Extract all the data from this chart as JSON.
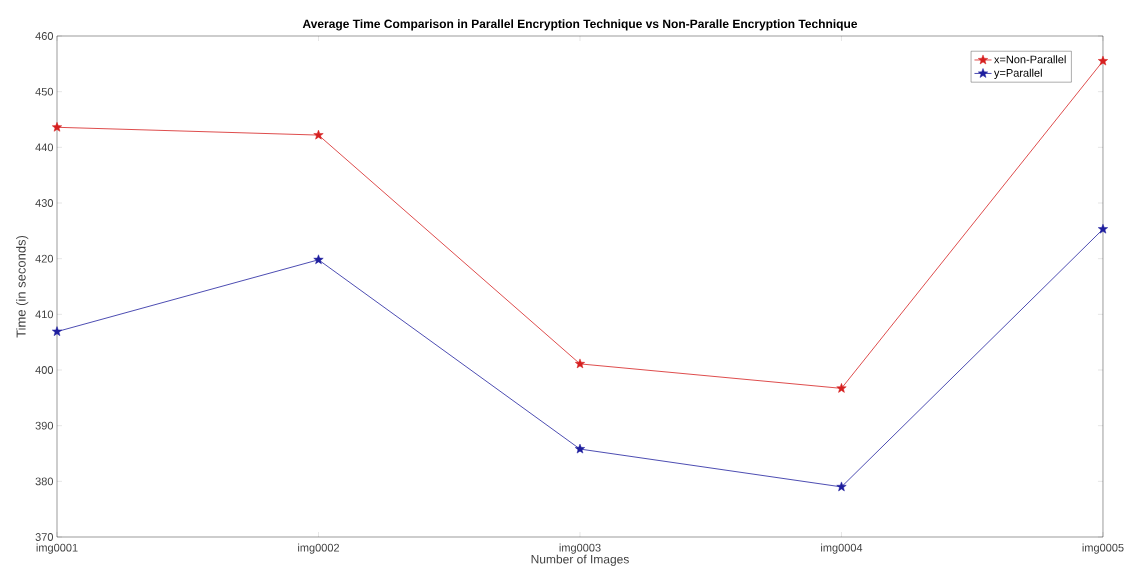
{
  "chart_data": {
    "type": "line",
    "title": "Average Time Comparison in Parallel Encryption Technique vs Non-Paralle Encryption Technique",
    "xlabel": "Number of Images",
    "ylabel": "Time (in seconds)",
    "categories": [
      "img0001",
      "img0002",
      "img0003",
      "img0004",
      "img0005"
    ],
    "series": [
      {
        "name": "x=Non-Parallel",
        "color": "#d62020",
        "values": [
          443.6,
          442.2,
          401.1,
          396.7,
          455.5
        ]
      },
      {
        "name": "y=Parallel",
        "color": "#1f1f9e",
        "values": [
          406.9,
          419.8,
          385.8,
          379.0,
          425.3
        ]
      }
    ],
    "ylim": [
      370,
      460
    ],
    "yticks": [
      370,
      380,
      390,
      400,
      410,
      420,
      430,
      440,
      450,
      460
    ],
    "grid": false,
    "legend": "top right",
    "marker": "star",
    "line_style": "solid"
  }
}
